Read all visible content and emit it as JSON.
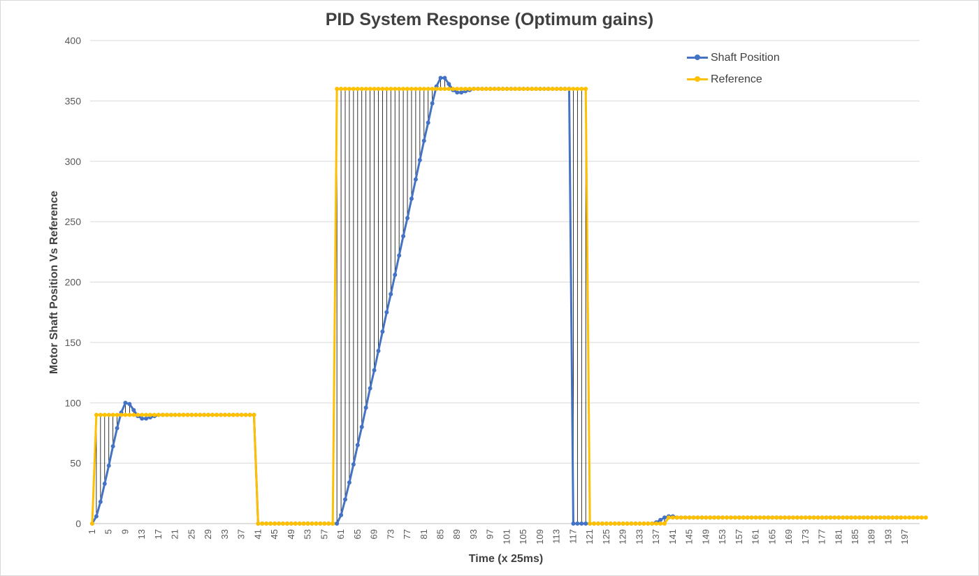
{
  "chart_data": {
    "type": "line",
    "title": "PID System Response (Optimum gains)",
    "xlabel": "Time (x 25ms)",
    "ylabel": "Motor Shaft Position Vs Reference",
    "ylim": [
      0,
      400
    ],
    "yticks": [
      0,
      50,
      100,
      150,
      200,
      250,
      300,
      350,
      400
    ],
    "x": {
      "start": 1,
      "end": 200
    },
    "xtick_labels": [
      "1",
      "5",
      "9",
      "13",
      "17",
      "21",
      "25",
      "29",
      "33",
      "37",
      "41",
      "45",
      "49",
      "53",
      "57",
      "61",
      "65",
      "69",
      "73",
      "77",
      "81",
      "85",
      "89",
      "93",
      "97",
      "101",
      "105",
      "109",
      "113",
      "117",
      "121",
      "125",
      "129",
      "133",
      "137",
      "141",
      "145",
      "149",
      "153",
      "157",
      "161",
      "165",
      "169",
      "173",
      "177",
      "181",
      "185",
      "189",
      "193",
      "197"
    ],
    "grid": "horizontal",
    "drop_lines": true,
    "legend_position": "top-right",
    "series": [
      {
        "name": "Shaft Position",
        "color": "#4472C4",
        "values": [
          0,
          6,
          18,
          33,
          48,
          64,
          79,
          92,
          100,
          99,
          94,
          89,
          87,
          87,
          88,
          89,
          90,
          90,
          90,
          90,
          90,
          90,
          90,
          90,
          90,
          90,
          90,
          90,
          90,
          90,
          90,
          90,
          90,
          90,
          90,
          90,
          90,
          90,
          90,
          90,
          0,
          0,
          0,
          0,
          0,
          0,
          0,
          0,
          0,
          0,
          0,
          0,
          0,
          0,
          0,
          0,
          0,
          0,
          0,
          0,
          7,
          20,
          34,
          49,
          65,
          80,
          96,
          112,
          127,
          143,
          159,
          175,
          190,
          206,
          222,
          238,
          253,
          269,
          285,
          301,
          317,
          332,
          348,
          362,
          369,
          369,
          364,
          359,
          357,
          357,
          358,
          359,
          360,
          360,
          360,
          360,
          360,
          360,
          360,
          360,
          360,
          360,
          360,
          360,
          360,
          360,
          360,
          360,
          360,
          360,
          360,
          360,
          360,
          360,
          360,
          360,
          0,
          0,
          0,
          0,
          0,
          0,
          0,
          0,
          0,
          0,
          0,
          0,
          0,
          0,
          0,
          0,
          0,
          0,
          0,
          0,
          1,
          3,
          5,
          6,
          6,
          5,
          5,
          5,
          5,
          5,
          5,
          5,
          5,
          5,
          5,
          5,
          5,
          5,
          5,
          5,
          5,
          5,
          5,
          5,
          5,
          5,
          5,
          5,
          5,
          5,
          5,
          5,
          5,
          5,
          5,
          5,
          5,
          5,
          5,
          5,
          5,
          5,
          5,
          5,
          5,
          5,
          5,
          5,
          5,
          5,
          5,
          5,
          5,
          5,
          5,
          5,
          5,
          5,
          5,
          5
        ]
      },
      {
        "name": "Reference",
        "color": "#FFC000",
        "values": [
          0,
          90,
          90,
          90,
          90,
          90,
          90,
          90,
          90,
          90,
          90,
          90,
          90,
          90,
          90,
          90,
          90,
          90,
          90,
          90,
          90,
          90,
          90,
          90,
          90,
          90,
          90,
          90,
          90,
          90,
          90,
          90,
          90,
          90,
          90,
          90,
          90,
          90,
          90,
          90,
          0,
          0,
          0,
          0,
          0,
          0,
          0,
          0,
          0,
          0,
          0,
          0,
          0,
          0,
          0,
          0,
          0,
          0,
          0,
          360,
          360,
          360,
          360,
          360,
          360,
          360,
          360,
          360,
          360,
          360,
          360,
          360,
          360,
          360,
          360,
          360,
          360,
          360,
          360,
          360,
          360,
          360,
          360,
          360,
          360,
          360,
          360,
          360,
          360,
          360,
          360,
          360,
          360,
          360,
          360,
          360,
          360,
          360,
          360,
          360,
          360,
          360,
          360,
          360,
          360,
          360,
          360,
          360,
          360,
          360,
          360,
          360,
          360,
          360,
          360,
          360,
          360,
          360,
          360,
          360,
          0,
          0,
          0,
          0,
          0,
          0,
          0,
          0,
          0,
          0,
          0,
          0,
          0,
          0,
          0,
          0,
          0,
          0,
          0,
          5,
          5,
          5,
          5,
          5,
          5,
          5,
          5,
          5,
          5,
          5,
          5,
          5,
          5,
          5,
          5,
          5,
          5,
          5,
          5,
          5,
          5,
          5,
          5,
          5,
          5,
          5,
          5,
          5,
          5,
          5,
          5,
          5,
          5,
          5,
          5,
          5,
          5,
          5,
          5,
          5,
          5,
          5,
          5,
          5,
          5,
          5,
          5,
          5,
          5,
          5,
          5,
          5,
          5,
          5,
          5,
          5,
          5,
          5,
          5,
          5,
          5,
          5
        ]
      }
    ]
  }
}
